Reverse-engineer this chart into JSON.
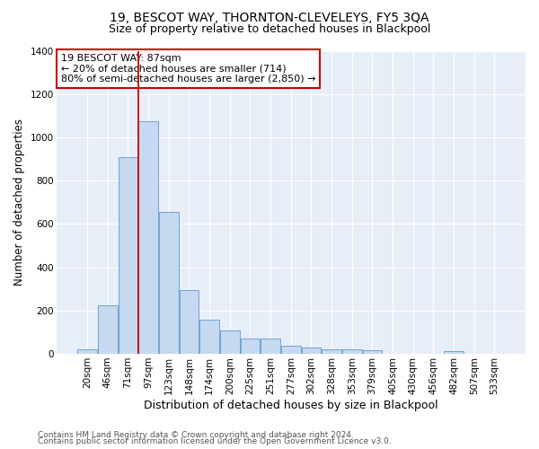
{
  "title": "19, BESCOT WAY, THORNTON-CLEVELEYS, FY5 3QA",
  "subtitle": "Size of property relative to detached houses in Blackpool",
  "xlabel": "Distribution of detached houses by size in Blackpool",
  "ylabel": "Number of detached properties",
  "bar_categories": [
    "20sqm",
    "46sqm",
    "71sqm",
    "97sqm",
    "123sqm",
    "148sqm",
    "174sqm",
    "200sqm",
    "225sqm",
    "251sqm",
    "277sqm",
    "302sqm",
    "328sqm",
    "353sqm",
    "379sqm",
    "405sqm",
    "430sqm",
    "456sqm",
    "482sqm",
    "507sqm",
    "533sqm"
  ],
  "bar_values": [
    20,
    225,
    910,
    1075,
    655,
    295,
    158,
    108,
    72,
    72,
    38,
    28,
    22,
    20,
    15,
    0,
    0,
    0,
    12,
    0,
    0
  ],
  "bar_color": "#c6d9f0",
  "bar_edge_color": "#5b9bd5",
  "vline_color": "#cc0000",
  "vline_x": 2.5,
  "annotation_text": "19 BESCOT WAY: 87sqm\n← 20% of detached houses are smaller (714)\n80% of semi-detached houses are larger (2,850) →",
  "annotation_box_edgecolor": "#cc0000",
  "annotation_box_facecolor": "white",
  "ylim": [
    0,
    1400
  ],
  "yticks": [
    0,
    200,
    400,
    600,
    800,
    1000,
    1200,
    1400
  ],
  "footer_line1": "Contains HM Land Registry data © Crown copyright and database right 2024.",
  "footer_line2": "Contains public sector information licensed under the Open Government Licence v3.0.",
  "bg_color": "#e8eef8",
  "title_fontsize": 10,
  "subtitle_fontsize": 9,
  "xlabel_fontsize": 9,
  "ylabel_fontsize": 8.5,
  "tick_fontsize": 7.5,
  "annotation_fontsize": 8,
  "footer_fontsize": 6.5
}
